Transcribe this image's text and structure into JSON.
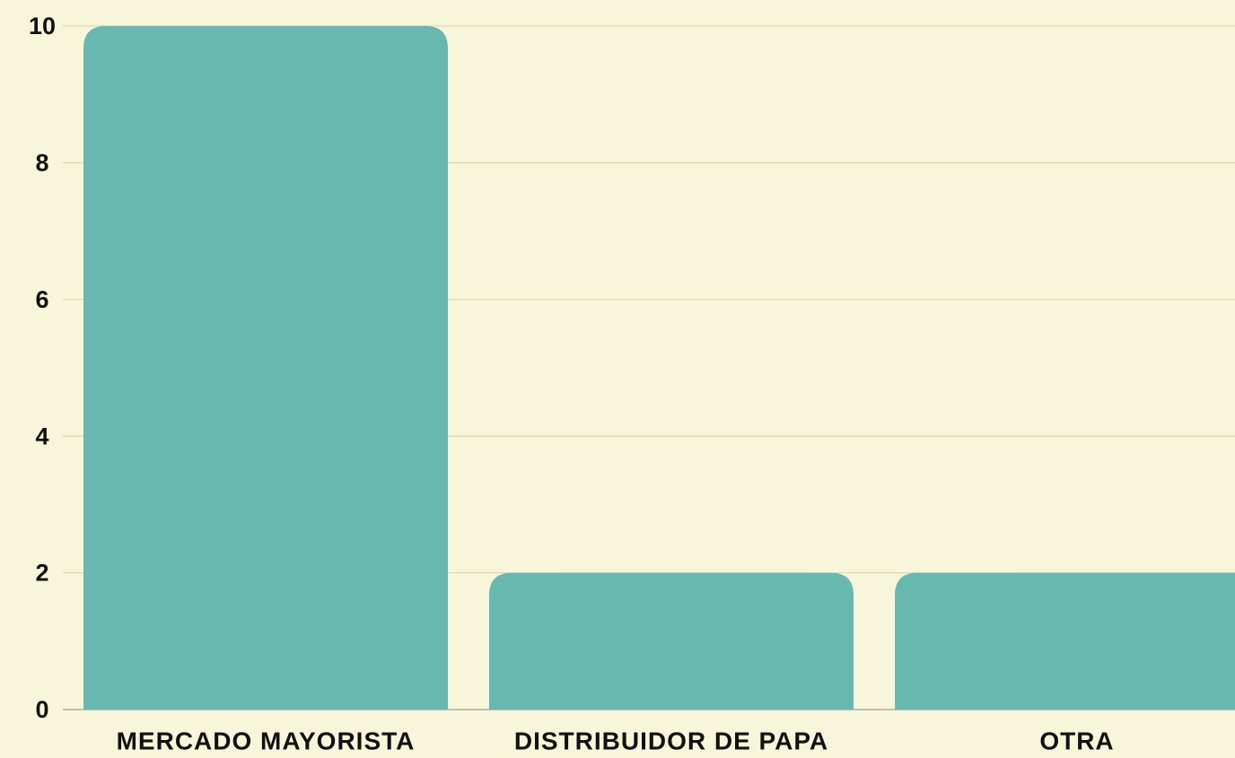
{
  "chart_data": {
    "type": "bar",
    "categories": [
      "MERCADO MAYORISTA",
      "DISTRIBUIDOR DE PAPA",
      "OTRA"
    ],
    "values": [
      10,
      2,
      2
    ],
    "color": "#67b8b0",
    "ylim": [
      0,
      10
    ],
    "yticks": [
      0,
      2,
      4,
      6,
      8,
      10
    ],
    "grid": true
  }
}
